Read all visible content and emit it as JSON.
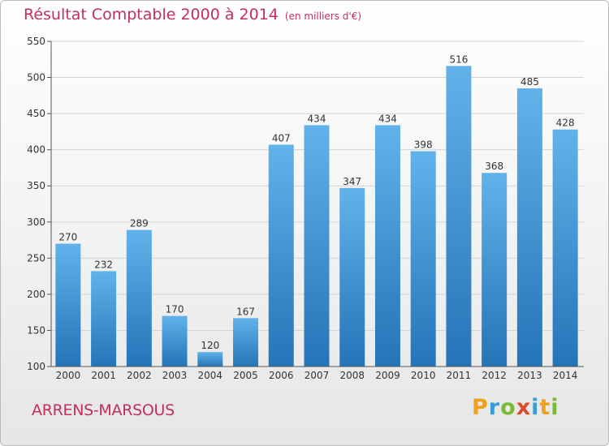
{
  "header": {
    "title": "Résultat Comptable 2000 à 2014",
    "subtitle": "(en milliers d'€)"
  },
  "footer": {
    "location": "ARRENS-MARSOUS",
    "logo_letters": [
      {
        "char": "P",
        "color": "#f0a020"
      },
      {
        "char": "r",
        "color": "#3a9bd5"
      },
      {
        "char": "o",
        "color": "#7ab83a"
      },
      {
        "char": "x",
        "color": "#e04a2a"
      },
      {
        "char": "i",
        "color": "#3a9bd5"
      },
      {
        "char": "t",
        "color": "#f0a020"
      },
      {
        "char": "i",
        "color": "#7ab83a"
      }
    ]
  },
  "chart_data": {
    "type": "bar",
    "categories": [
      "2000",
      "2001",
      "2002",
      "2003",
      "2004",
      "2005",
      "2006",
      "2007",
      "2008",
      "2009",
      "2010",
      "2011",
      "2012",
      "2013",
      "2014"
    ],
    "values": [
      270,
      232,
      289,
      170,
      120,
      167,
      407,
      434,
      347,
      434,
      398,
      516,
      368,
      485,
      428
    ],
    "title": "Résultat Comptable 2000 à 2014",
    "subtitle": "(en milliers d'€)",
    "ylim": [
      100,
      550
    ],
    "yticks": [
      100,
      150,
      200,
      250,
      300,
      350,
      400,
      450,
      500,
      550
    ],
    "grid": true,
    "bar_color_top": "#62b2ea",
    "bar_color_bottom": "#2474b8"
  }
}
